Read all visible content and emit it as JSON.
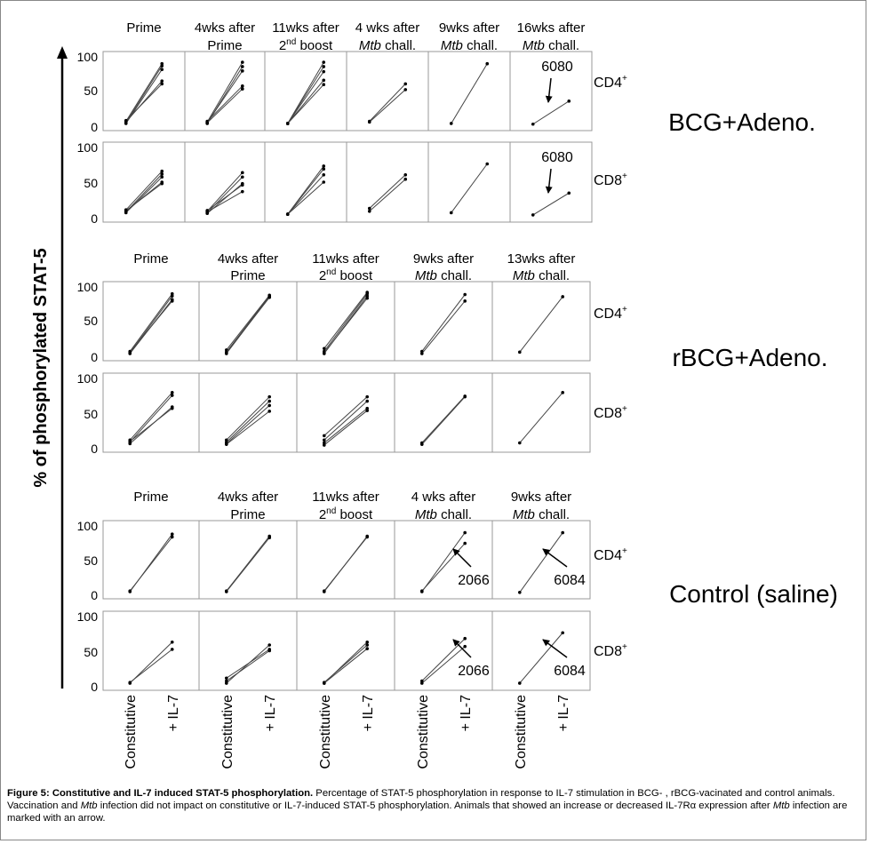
{
  "y_axis_label": "% of phosphorylated STAT-5",
  "x_categories": [
    "Constitutive",
    "+ IL-7"
  ],
  "caption": {
    "figure_label": "Figure 5:",
    "title": "Constitutive and IL-7 induced STAT-5 phosphorylation.",
    "body_part1": "Percentage of STAT-5 phosphorylation in response to IL-7 stimulation in BCG- , rBCG-vacinated and control animals. Vaccination and",
    "italic1": "Mtb",
    "body_part2": "infection did not impact on constitutive or IL-7-induced STAT-5 phosphorylation. Animals that showed an increase or decreased IL-7Rα expression after",
    "italic2": "Mtb",
    "body_part3": "infection are marked with an arrow."
  },
  "chart_data": {
    "type": "line",
    "xlabel": "",
    "ylabel": "% of phosphorylated STAT-5",
    "ylim": [
      0,
      100
    ],
    "yticks": [
      0,
      50,
      100
    ],
    "categories": [
      "Constitutive",
      "+ IL-7"
    ],
    "groups": [
      {
        "name": "BCG+Adeno.",
        "timepoints": [
          {
            "line1": "Prime",
            "line2": "",
            "sup": ""
          },
          {
            "line1": "4wks after",
            "line2": "Prime",
            "sup": ""
          },
          {
            "line1": "11wks after",
            "line2": "2",
            "sup": "nd",
            "line2_rest": " boost"
          },
          {
            "line1": "4 wks after",
            "line2": "Mtb",
            "line2_rest": " chall.",
            "italic": true
          },
          {
            "line1": "9wks after",
            "line2": "Mtb",
            "line2_rest": " chall.",
            "italic": true
          },
          {
            "line1": "16wks after",
            "line2": "Mtb",
            "line2_rest": " chall.",
            "italic": true
          }
        ],
        "rows": [
          {
            "cell": "CD4",
            "sup": "+",
            "panels": [
              [
                [
                  8,
                  88
                ],
                [
                  6,
                  85
                ],
                [
                  5,
                  80
                ],
                [
                  7,
                  64
                ],
                [
                  9,
                  60
                ]
              ],
              [
                [
                  7,
                  90
                ],
                [
                  5,
                  84
                ],
                [
                  6,
                  78
                ],
                [
                  8,
                  57
                ],
                [
                  6,
                  53
                ]
              ],
              [
                [
                  5,
                  90
                ],
                [
                  5,
                  84
                ],
                [
                  5,
                  77
                ],
                [
                  5,
                  65
                ],
                [
                  5,
                  59
                ]
              ],
              [
                [
                  8,
                  60
                ],
                [
                  7,
                  52
                ]
              ],
              [
                [
                  5,
                  88
                ]
              ],
              [
                [
                  4,
                  36
                ]
              ]
            ],
            "annotations": [
              {
                "panel": 5,
                "text": "6080"
              }
            ]
          },
          {
            "cell": "CD8",
            "sup": "+",
            "panels": [
              [
                [
                  12,
                  65
                ],
                [
                  9,
                  61
                ],
                [
                  8,
                  57
                ],
                [
                  10,
                  50
                ],
                [
                  11,
                  48
                ]
              ],
              [
                [
                  10,
                  63
                ],
                [
                  8,
                  57
                ],
                [
                  7,
                  48
                ],
                [
                  11,
                  46
                ],
                [
                  9,
                  37
                ]
              ],
              [
                [
                  6,
                  72
                ],
                [
                  6,
                  68
                ],
                [
                  6,
                  60
                ],
                [
                  6,
                  50
                ]
              ],
              [
                [
                  14,
                  60
                ],
                [
                  10,
                  54
                ]
              ],
              [
                [
                  8,
                  75
                ]
              ],
              [
                [
                  5,
                  35
                ]
              ]
            ],
            "annotations": [
              {
                "panel": 5,
                "text": "6080"
              }
            ]
          }
        ]
      },
      {
        "name": "rBCG+Adeno.",
        "timepoints": [
          {
            "line1": "Prime",
            "line2": "",
            "sup": ""
          },
          {
            "line1": "4wks after",
            "line2": "Prime",
            "sup": ""
          },
          {
            "line1": "11wks after",
            "line2": "2",
            "sup": "nd",
            "line2_rest": " boost"
          },
          {
            "line1": "9wks after",
            "line2": "Mtb",
            "line2_rest": " chall.",
            "italic": true
          },
          {
            "line1": "13wks after",
            "line2": "Mtb",
            "line2_rest": " chall.",
            "italic": true
          }
        ],
        "rows": [
          {
            "cell": "CD4",
            "sup": "+",
            "panels": [
              [
                [
                  8,
                  88
                ],
                [
                  6,
                  85
                ],
                [
                  5,
                  80
                ],
                [
                  7,
                  78
                ]
              ],
              [
                [
                  10,
                  86
                ],
                [
                  7,
                  85
                ],
                [
                  5,
                  84
                ],
                [
                  6,
                  83
                ]
              ],
              [
                [
                  12,
                  90
                ],
                [
                  8,
                  88
                ],
                [
                  5,
                  85
                ],
                [
                  6,
                  82
                ]
              ],
              [
                [
                  8,
                  87
                ],
                [
                  5,
                  78
                ]
              ],
              [
                [
                  7,
                  84
                ]
              ]
            ],
            "annotations": []
          },
          {
            "cell": "CD8",
            "sup": "+",
            "panels": [
              [
                [
                  12,
                  78
                ],
                [
                  9,
                  74
                ],
                [
                  7,
                  58
                ],
                [
                  10,
                  56
                ]
              ],
              [
                [
                  12,
                  72
                ],
                [
                  9,
                  66
                ],
                [
                  7,
                  60
                ],
                [
                  6,
                  52
                ]
              ],
              [
                [
                  18,
                  72
                ],
                [
                  12,
                  66
                ],
                [
                  8,
                  56
                ],
                [
                  5,
                  53
                ]
              ],
              [
                [
                  8,
                  73
                ],
                [
                  6,
                  72
                ]
              ],
              [
                [
                  8,
                  78
                ]
              ]
            ],
            "annotations": []
          }
        ]
      },
      {
        "name": "Control (saline)",
        "timepoints": [
          {
            "line1": "Prime",
            "line2": "",
            "sup": ""
          },
          {
            "line1": "4wks after",
            "line2": "Prime",
            "sup": ""
          },
          {
            "line1": "11wks after",
            "line2": "2",
            "sup": "nd",
            "line2_rest": " boost"
          },
          {
            "line1": "4 wks after",
            "line2": "Mtb",
            "line2_rest": " chall.",
            "italic": true
          },
          {
            "line1": "9wks after",
            "line2": "Mtb",
            "line2_rest": " chall.",
            "italic": true
          }
        ],
        "rows": [
          {
            "cell": "CD4",
            "sup": "+",
            "panels": [
              [
                [
                  5,
                  86
                ],
                [
                  6,
                  82
                ]
              ],
              [
                [
                  6,
                  83
                ],
                [
                  5,
                  81
                ]
              ],
              [
                [
                  5,
                  83
                ],
                [
                  6,
                  82
                ]
              ],
              [
                [
                  5,
                  88
                ],
                [
                  6,
                  73
                ]
              ],
              [
                [
                  4,
                  88
                ]
              ]
            ],
            "annotations": [
              {
                "panel": 3,
                "text": "2066"
              },
              {
                "panel": 4,
                "text": "6084"
              }
            ]
          },
          {
            "cell": "CD8",
            "sup": "+",
            "panels": [
              [
                [
                  5,
                  62
                ],
                [
                  6,
                  52
                ]
              ],
              [
                [
                  5,
                  58
                ],
                [
                  12,
                  52
                ],
                [
                  8,
                  50
                ]
              ],
              [
                [
                  5,
                  62
                ],
                [
                  6,
                  58
                ],
                [
                  5,
                  53
                ]
              ],
              [
                [
                  8,
                  67
                ],
                [
                  5,
                  56
                ]
              ],
              [
                [
                  5,
                  75
                ]
              ]
            ],
            "annotations": [
              {
                "panel": 3,
                "text": "2066"
              },
              {
                "panel": 4,
                "text": "6084"
              }
            ]
          }
        ]
      }
    ]
  }
}
